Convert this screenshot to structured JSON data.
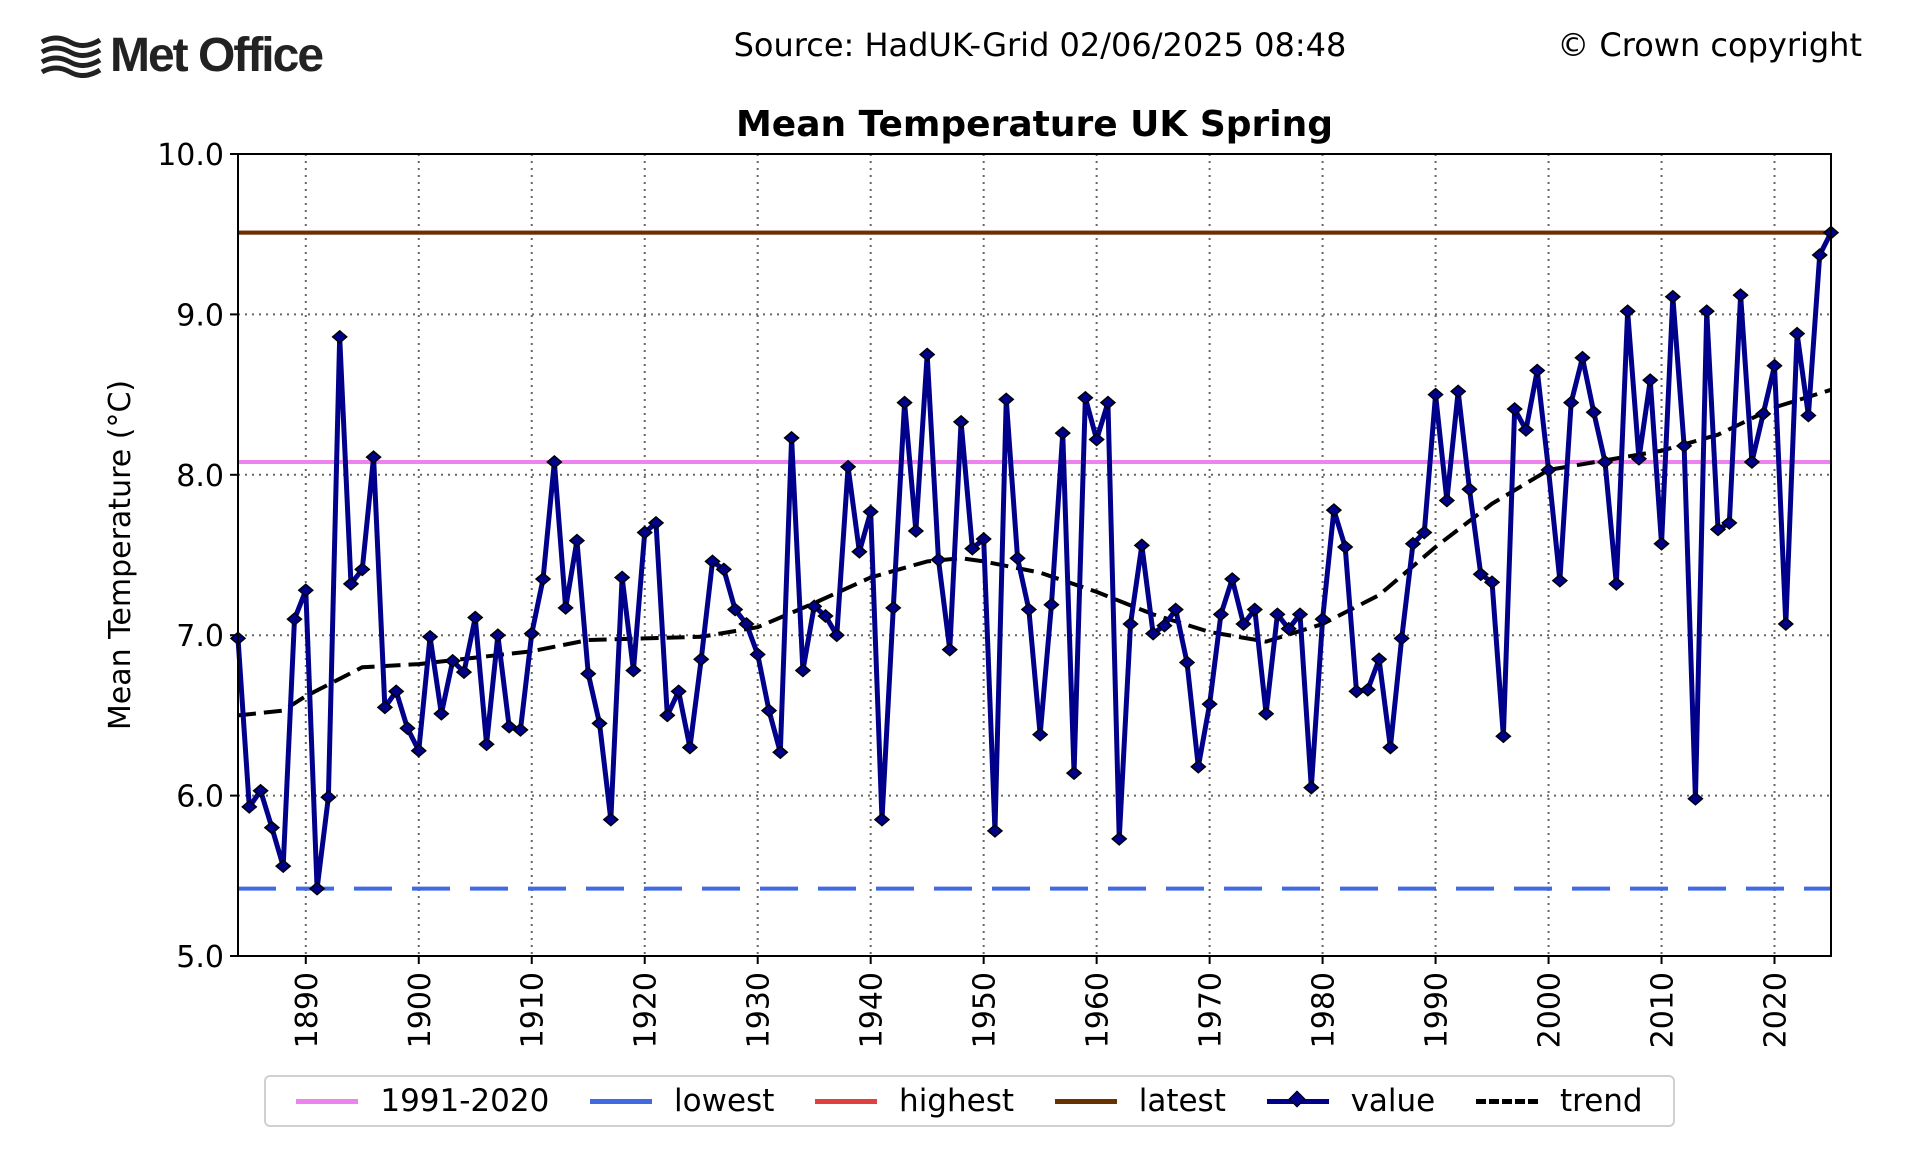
{
  "header": {
    "logo_text": "Met Office",
    "source": "Source: HadUK-Grid 02/06/2025 08:48",
    "copyright": "© Crown copyright"
  },
  "chart_data": {
    "type": "line",
    "title": "Mean Temperature UK Spring",
    "xlabel": "",
    "ylabel": "Mean Temperature (°C)",
    "xlim": [
      1884,
      2025
    ],
    "ylim": [
      5.0,
      10.0
    ],
    "yticks": [
      "5.0",
      "6.0",
      "7.0",
      "8.0",
      "9.0",
      "10.0"
    ],
    "xticks": [
      "1890",
      "1900",
      "1910",
      "1920",
      "1930",
      "1940",
      "1950",
      "1960",
      "1970",
      "1980",
      "1990",
      "2000",
      "2010",
      "2020"
    ],
    "grid": true,
    "legend_placement": "bottom",
    "x": [
      1884,
      1885,
      1886,
      1887,
      1888,
      1889,
      1890,
      1891,
      1892,
      1893,
      1894,
      1895,
      1896,
      1897,
      1898,
      1899,
      1900,
      1901,
      1902,
      1903,
      1904,
      1905,
      1906,
      1907,
      1908,
      1909,
      1910,
      1911,
      1912,
      1913,
      1914,
      1915,
      1916,
      1917,
      1918,
      1919,
      1920,
      1921,
      1922,
      1923,
      1924,
      1925,
      1926,
      1927,
      1928,
      1929,
      1930,
      1931,
      1932,
      1933,
      1934,
      1935,
      1936,
      1937,
      1938,
      1939,
      1940,
      1941,
      1942,
      1943,
      1944,
      1945,
      1946,
      1947,
      1948,
      1949,
      1950,
      1951,
      1952,
      1953,
      1954,
      1955,
      1956,
      1957,
      1958,
      1959,
      1960,
      1961,
      1962,
      1963,
      1964,
      1965,
      1966,
      1967,
      1968,
      1969,
      1970,
      1971,
      1972,
      1973,
      1974,
      1975,
      1976,
      1977,
      1978,
      1979,
      1980,
      1981,
      1982,
      1983,
      1984,
      1985,
      1986,
      1987,
      1988,
      1989,
      1990,
      1991,
      1992,
      1993,
      1994,
      1995,
      1996,
      1997,
      1998,
      1999,
      2000,
      2001,
      2002,
      2003,
      2004,
      2005,
      2006,
      2007,
      2008,
      2009,
      2010,
      2011,
      2012,
      2013,
      2014,
      2015,
      2016,
      2017,
      2018,
      2019,
      2020,
      2021,
      2022,
      2023,
      2024,
      2025
    ],
    "series": [
      {
        "name": "value",
        "color": "#00008b",
        "marker": "diamond",
        "values": [
          6.98,
          5.93,
          6.03,
          5.8,
          5.56,
          7.1,
          7.28,
          5.42,
          5.99,
          8.86,
          7.32,
          7.41,
          8.11,
          6.55,
          6.65,
          6.42,
          6.28,
          6.99,
          6.51,
          6.84,
          6.77,
          7.11,
          6.32,
          7.0,
          6.43,
          6.41,
          7.01,
          7.35,
          8.08,
          7.17,
          7.59,
          6.76,
          6.45,
          5.85,
          7.36,
          6.78,
          7.64,
          7.7,
          6.5,
          6.65,
          6.3,
          6.85,
          7.46,
          7.41,
          7.16,
          7.07,
          6.88,
          6.53,
          6.27,
          8.23,
          6.78,
          7.18,
          7.12,
          7.0,
          8.05,
          7.52,
          7.77,
          5.85,
          7.17,
          8.45,
          7.65,
          8.75,
          7.47,
          6.91,
          8.33,
          7.54,
          7.6,
          5.78,
          8.47,
          7.48,
          7.16,
          6.38,
          7.19,
          8.26,
          6.14,
          8.48,
          8.22,
          8.45,
          5.73,
          7.07,
          7.56,
          7.01,
          7.06,
          7.16,
          6.83,
          6.18,
          6.57,
          7.13,
          7.35,
          7.07,
          7.16,
          6.51,
          7.13,
          7.04,
          7.13,
          6.05,
          7.1,
          7.78,
          7.55,
          6.65,
          6.66,
          6.85,
          6.3,
          6.98,
          7.57,
          7.64,
          8.5,
          7.84,
          8.52,
          7.91,
          7.38,
          7.33,
          6.37,
          8.41,
          8.28,
          8.65,
          8.03,
          7.34,
          8.45,
          8.73,
          8.39,
          8.08,
          7.32,
          9.02,
          8.1,
          8.59,
          7.57,
          9.11,
          8.18,
          5.98,
          9.02,
          7.66,
          7.7,
          9.12,
          8.08,
          8.38,
          8.68,
          7.07,
          8.88,
          8.37,
          9.37,
          9.51
        ]
      },
      {
        "name": "trend",
        "color": "#000000",
        "style": "dashed",
        "x": [
          1884,
          1888,
          1890,
          1895,
          1900,
          1905,
          1910,
          1915,
          1920,
          1925,
          1930,
          1935,
          1940,
          1945,
          1948,
          1950,
          1955,
          1960,
          1965,
          1970,
          1975,
          1980,
          1985,
          1990,
          1995,
          2000,
          2005,
          2010,
          2015,
          2020,
          2025
        ],
        "values": [
          6.5,
          6.53,
          6.62,
          6.8,
          6.82,
          6.86,
          6.9,
          6.97,
          6.98,
          6.99,
          7.05,
          7.2,
          7.36,
          7.46,
          7.48,
          7.46,
          7.39,
          7.27,
          7.13,
          7.02,
          6.96,
          7.07,
          7.25,
          7.55,
          7.82,
          8.03,
          8.09,
          8.15,
          8.25,
          8.42,
          8.53
        ]
      }
    ],
    "reference_lines": [
      {
        "name": "1991-2020",
        "value": 8.08,
        "color": "#ee82ee",
        "style": "solid"
      },
      {
        "name": "lowest",
        "value": 5.42,
        "color": "#4169e1",
        "style": "dashed"
      },
      {
        "name": "highest",
        "value": 9.51,
        "color": "#e04040",
        "style": "solid"
      },
      {
        "name": "latest",
        "value": 9.51,
        "color": "#663300",
        "style": "solid"
      }
    ],
    "legend": [
      "1991-2020",
      "lowest",
      "highest",
      "latest",
      "value",
      "trend"
    ]
  }
}
